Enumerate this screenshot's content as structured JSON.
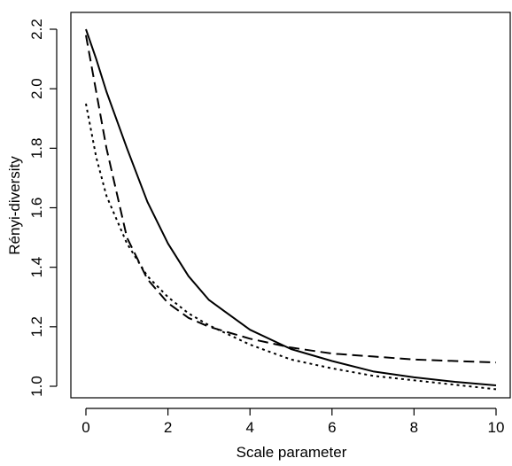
{
  "chart_data": {
    "type": "line",
    "title": "",
    "xlabel": "Scale parameter",
    "ylabel": "Rényi-diversity",
    "xlim": [
      0,
      10
    ],
    "ylim": [
      1.0,
      2.2
    ],
    "xticks": [
      "0",
      "2",
      "4",
      "6",
      "8",
      "10"
    ],
    "yticks": [
      "1.0",
      "1.2",
      "1.4",
      "1.6",
      "1.8",
      "2.0",
      "2.2"
    ],
    "legend": "none",
    "grid": false,
    "series": [
      {
        "line_style": "solid",
        "x": [
          0,
          0.25,
          0.5,
          1,
          1.5,
          2,
          2.5,
          3,
          4,
          5,
          6,
          7,
          8,
          9,
          10
        ],
        "y": [
          2.2,
          2.1,
          1.99,
          1.8,
          1.62,
          1.48,
          1.37,
          1.29,
          1.19,
          1.125,
          1.085,
          1.05,
          1.03,
          1.015,
          1.003
        ]
      },
      {
        "line_style": "dashed",
        "x": [
          0,
          0.25,
          0.5,
          1,
          1.5,
          2,
          2.5,
          3,
          4,
          5,
          6,
          7,
          8,
          9,
          10
        ],
        "y": [
          2.18,
          1.99,
          1.8,
          1.5,
          1.36,
          1.28,
          1.23,
          1.2,
          1.16,
          1.13,
          1.11,
          1.1,
          1.09,
          1.085,
          1.08
        ]
      },
      {
        "line_style": "dotted",
        "x": [
          0,
          0.25,
          0.5,
          1,
          1.5,
          2,
          2.5,
          3,
          4,
          5,
          6,
          7,
          8,
          9,
          10
        ],
        "y": [
          1.95,
          1.77,
          1.64,
          1.48,
          1.37,
          1.3,
          1.245,
          1.205,
          1.14,
          1.09,
          1.06,
          1.035,
          1.02,
          1.005,
          0.99
        ]
      }
    ]
  }
}
